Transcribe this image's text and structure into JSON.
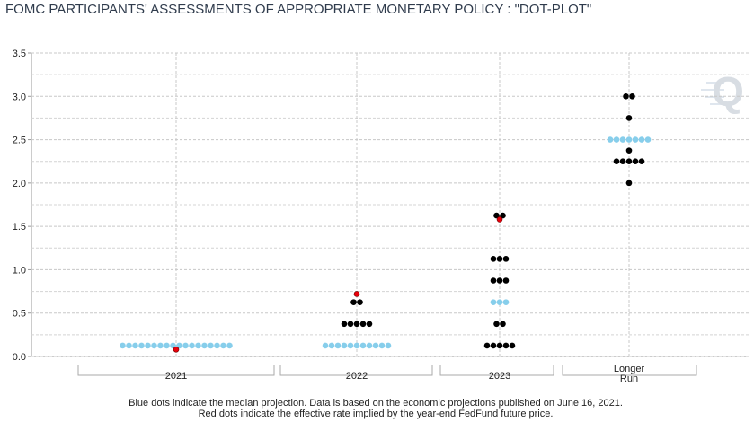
{
  "chart_data": {
    "type": "dot-plot",
    "title": "FOMC PARTICIPANTS' ASSESSMENTS OF APPROPRIATE MONETARY POLICY : \"DOT-PLOT\"",
    "categories": [
      "2021",
      "2022",
      "2023",
      "Longer Run"
    ],
    "dots": [
      {
        "rates": [
          0.125
        ],
        "counts": [
          18
        ]
      },
      {
        "rates": [
          0.125,
          0.375,
          0.625
        ],
        "counts": [
          11,
          5,
          2
        ]
      },
      {
        "rates": [
          0.125,
          0.375,
          0.625,
          0.875,
          1.125,
          1.625
        ],
        "counts": [
          5,
          2,
          3,
          3,
          3,
          2
        ]
      },
      {
        "rates": [
          2.0,
          2.25,
          2.375,
          2.5,
          2.75,
          3.0
        ],
        "counts": [
          1,
          5,
          1,
          7,
          1,
          2
        ]
      }
    ],
    "medians": [
      0.125,
      0.125,
      0.625,
      2.5
    ],
    "market_implied": [
      0.08,
      0.72,
      1.58,
      null
    ],
    "dot_color": "#000000",
    "median_color": "#87ceeb",
    "market_color": "#e8000b",
    "ylim": [
      0,
      3.5
    ],
    "yticks": [
      {
        "value": 0,
        "label": "0.0"
      },
      0.5,
      {
        "value": 1,
        "label": "1.0"
      },
      1.5,
      {
        "value": 2,
        "label": "2.0"
      },
      2.5,
      {
        "value": 3,
        "label": "3.0"
      },
      3.5
    ],
    "grid": true,
    "notes": [
      "Blue dots indicate the median projection. Data is based on the economic projections published on June 16, 2021.",
      "Red dots indicate the effective rate implied by the year-end FedFund future price."
    ],
    "logo": "Q"
  }
}
